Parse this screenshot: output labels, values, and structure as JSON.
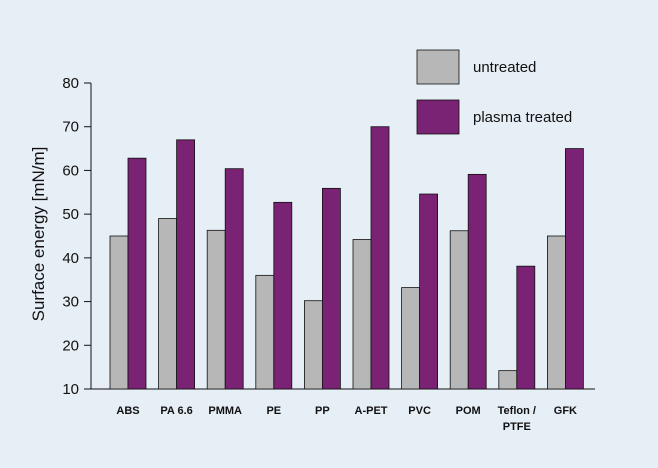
{
  "colors": {
    "background": "#e6eef6",
    "untreated": "#b7b7b7",
    "plasma_treated": "#7a2273",
    "axis": "#111111"
  },
  "chart_data": {
    "type": "bar",
    "ylabel": "Surface energy [mN/m]",
    "xlabel": "",
    "ylim": [
      10,
      80
    ],
    "yticks": [
      10,
      20,
      30,
      40,
      50,
      60,
      70,
      80
    ],
    "grid": false,
    "legend_position": "top-right",
    "categories": [
      [
        "ABS"
      ],
      [
        "PA 6.6"
      ],
      [
        "PMMA"
      ],
      [
        "PE"
      ],
      [
        "PP"
      ],
      [
        "A-PET"
      ],
      [
        "PVC"
      ],
      [
        "POM"
      ],
      [
        "Teflon /",
        "PTFE"
      ],
      [
        "GFK"
      ]
    ],
    "series": [
      {
        "name": "untreated",
        "values": [
          45,
          49,
          46.3,
          36,
          30.2,
          44.2,
          33.2,
          46.2,
          14.2,
          45
        ]
      },
      {
        "name": "plasma treated",
        "values": [
          62.8,
          67,
          60.4,
          52.7,
          55.9,
          70,
          54.6,
          59.1,
          38.1,
          65
        ]
      }
    ]
  }
}
